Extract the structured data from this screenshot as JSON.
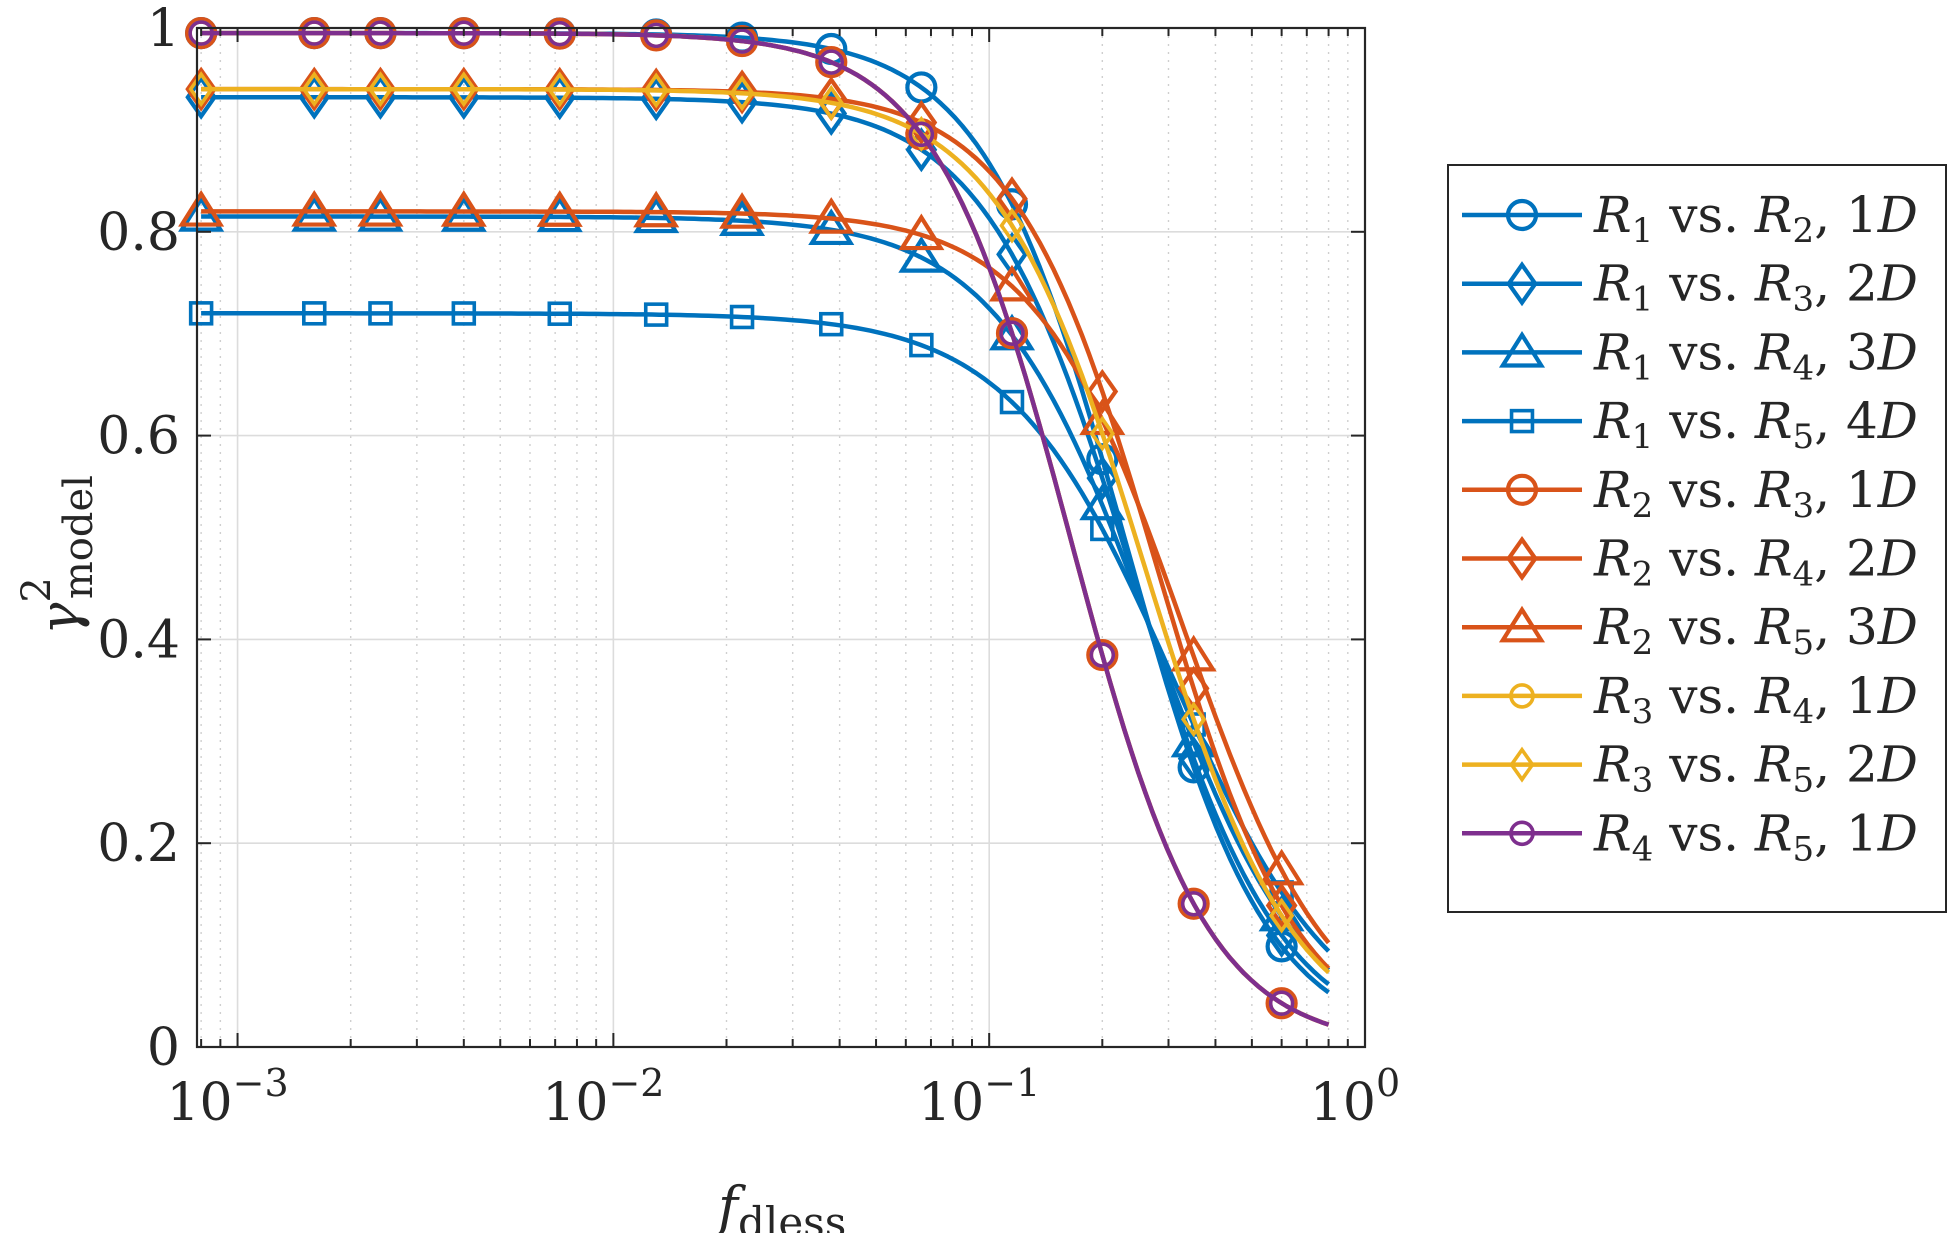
{
  "chart_data": {
    "type": "line",
    "xscale": "log",
    "xlim": [
      0.00078,
      1
    ],
    "ylim": [
      0,
      1
    ],
    "xlabel": "f_dless",
    "xlabel_main": "f",
    "xlabel_sub": "dless",
    "ylabel": "γ²_model",
    "ylabel_main": "γ",
    "ylabel_sup": "2",
    "ylabel_sub": "model",
    "x_ticks": [
      {
        "value": 0.001,
        "base": "10",
        "exp": "−3"
      },
      {
        "value": 0.01,
        "base": "10",
        "exp": "−2"
      },
      {
        "value": 0.1,
        "base": "10",
        "exp": "−1"
      },
      {
        "value": 1,
        "base": "10",
        "exp": "0"
      }
    ],
    "y_ticks": [
      {
        "value": 0,
        "label": "0"
      },
      {
        "value": 0.2,
        "label": "0.2"
      },
      {
        "value": 0.4,
        "label": "0.4"
      },
      {
        "value": 0.6,
        "label": "0.6"
      },
      {
        "value": 0.8,
        "label": "0.8"
      },
      {
        "value": 1,
        "label": "1"
      }
    ],
    "grid": true,
    "legend_position": "outside-right",
    "series": [
      {
        "name": "R1 vs. R2, 1D",
        "a": "R",
        "asub": "1",
        "b": "R",
        "bsub": "2",
        "sep": "1",
        "sepvar": "D",
        "color": "#0072BD",
        "marker": "circle",
        "marker_size": "large",
        "g0": 0.995,
        "fc": 0.23,
        "n": 2.3
      },
      {
        "name": "R1 vs. R3, 2D",
        "a": "R",
        "asub": "1",
        "b": "R",
        "bsub": "3",
        "sep": "2",
        "sepvar": "D",
        "color": "#0072BD",
        "marker": "diamond",
        "marker_size": "large",
        "g0": 0.932,
        "fc": 0.24,
        "n": 2.2
      },
      {
        "name": "R1 vs. R4, 3D",
        "a": "R",
        "asub": "1",
        "b": "R",
        "bsub": "4",
        "sep": "3",
        "sepvar": "D",
        "color": "#0072BD",
        "marker": "triangle",
        "marker_size": "large",
        "g0": 0.815,
        "fc": 0.27,
        "n": 2.1
      },
      {
        "name": "R1 vs. R5, 4D",
        "a": "R",
        "asub": "1",
        "b": "R",
        "bsub": "5",
        "sep": "4",
        "sepvar": "D",
        "color": "#0072BD",
        "marker": "square",
        "marker_size": "medium",
        "g0": 0.72,
        "fc": 0.31,
        "n": 2.0
      },
      {
        "name": "R2 vs. R3, 1D",
        "a": "R",
        "asub": "2",
        "b": "R",
        "bsub": "3",
        "sep": "1",
        "sepvar": "D",
        "color": "#D95319",
        "marker": "circle",
        "marker_size": "large",
        "g0": 0.995,
        "fc": 0.165,
        "n": 2.4
      },
      {
        "name": "R2 vs. R4, 2D",
        "a": "R",
        "asub": "2",
        "b": "R",
        "bsub": "4",
        "sep": "2",
        "sepvar": "D",
        "color": "#D95319",
        "marker": "diamond",
        "marker_size": "large",
        "g0": 0.94,
        "fc": 0.28,
        "n": 2.3
      },
      {
        "name": "R2 vs. R5, 3D",
        "a": "R",
        "asub": "2",
        "b": "R",
        "bsub": "5",
        "sep": "3",
        "sepvar": "D",
        "color": "#D95319",
        "marker": "triangle",
        "marker_size": "large",
        "g0": 0.82,
        "fc": 0.33,
        "n": 2.2
      },
      {
        "name": "R3 vs. R4, 1D",
        "a": "R",
        "asub": "3",
        "b": "R",
        "bsub": "4",
        "sep": "1",
        "sepvar": "D",
        "color": "#EDB120",
        "marker": "circle",
        "marker_size": "medium",
        "g0": 0.995,
        "fc": 0.165,
        "n": 2.4
      },
      {
        "name": "R3 vs. R5, 2D",
        "a": "R",
        "asub": "3",
        "b": "R",
        "bsub": "5",
        "sep": "2",
        "sepvar": "D",
        "color": "#EDB120",
        "marker": "diamond",
        "marker_size": "medium",
        "g0": 0.94,
        "fc": 0.26,
        "n": 2.2
      },
      {
        "name": "R4 vs. R5, 1D",
        "a": "R",
        "asub": "4",
        "b": "R",
        "bsub": "5",
        "sep": "1",
        "sepvar": "D",
        "color": "#7E2F8E",
        "marker": "circle",
        "marker_size": "medium",
        "g0": 0.995,
        "fc": 0.165,
        "n": 2.4
      }
    ],
    "marker_x": [
      0.0008,
      0.0016,
      0.0024,
      0.004,
      0.0072,
      0.013,
      0.022,
      0.038,
      0.066,
      0.115,
      0.2,
      0.35,
      0.6
    ],
    "curve_x_range": [
      0.0008,
      0.8
    ]
  },
  "legend_text": {
    "vs": "vs.",
    "comma": ","
  }
}
